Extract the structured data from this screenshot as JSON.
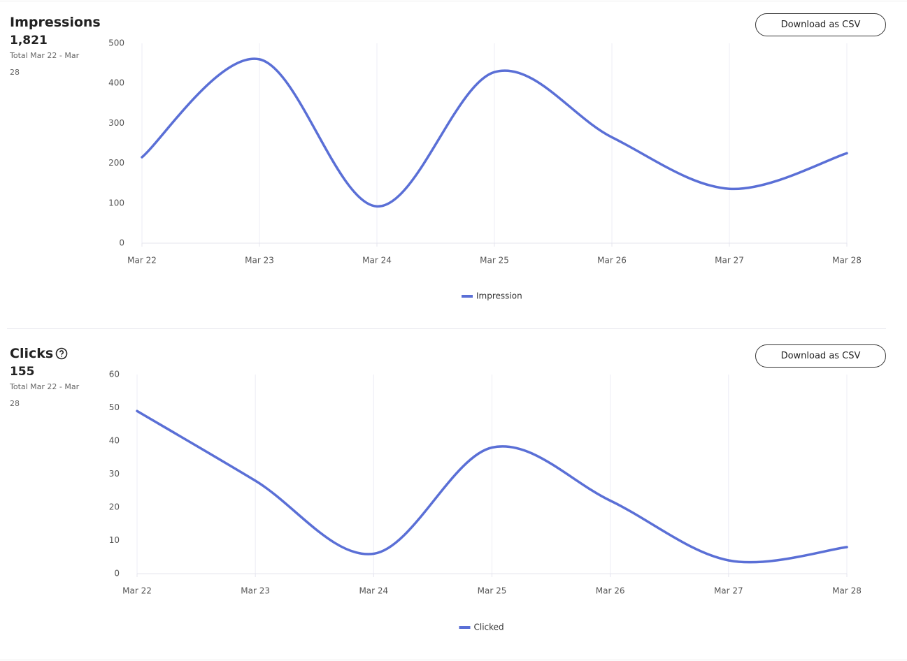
{
  "chart_data": [
    {
      "type": "line",
      "title": "Impressions",
      "total": "1,821",
      "total_caption": "Total Mar 22 - Mar 28",
      "button": "Download as CSV",
      "categories": [
        "Mar 22",
        "Mar 23",
        "Mar 24",
        "Mar 25",
        "Mar 26",
        "Mar 27",
        "Mar 28"
      ],
      "series": [
        {
          "name": "Impression",
          "color": "#5a6fd6",
          "values": [
            215,
            460,
            92,
            428,
            265,
            136,
            225
          ]
        }
      ],
      "ylim": [
        0,
        500
      ],
      "yticks": [
        0,
        100,
        200,
        300,
        400,
        500
      ],
      "grid": "x",
      "legend": "bottom"
    },
    {
      "type": "line",
      "title": "Clicks",
      "total": "155",
      "total_caption": "Total Mar 22 - Mar 28",
      "button": "Download as CSV",
      "categories": [
        "Mar 22",
        "Mar 23",
        "Mar 24",
        "Mar 25",
        "Mar 26",
        "Mar 27",
        "Mar 28"
      ],
      "series": [
        {
          "name": "Clicked",
          "color": "#5a6fd6",
          "values": [
            49,
            28,
            6,
            38,
            22,
            4,
            8
          ]
        }
      ],
      "ylim": [
        0,
        60
      ],
      "yticks": [
        0,
        10,
        20,
        30,
        40,
        50,
        60
      ],
      "grid": "x",
      "legend": "bottom"
    }
  ]
}
